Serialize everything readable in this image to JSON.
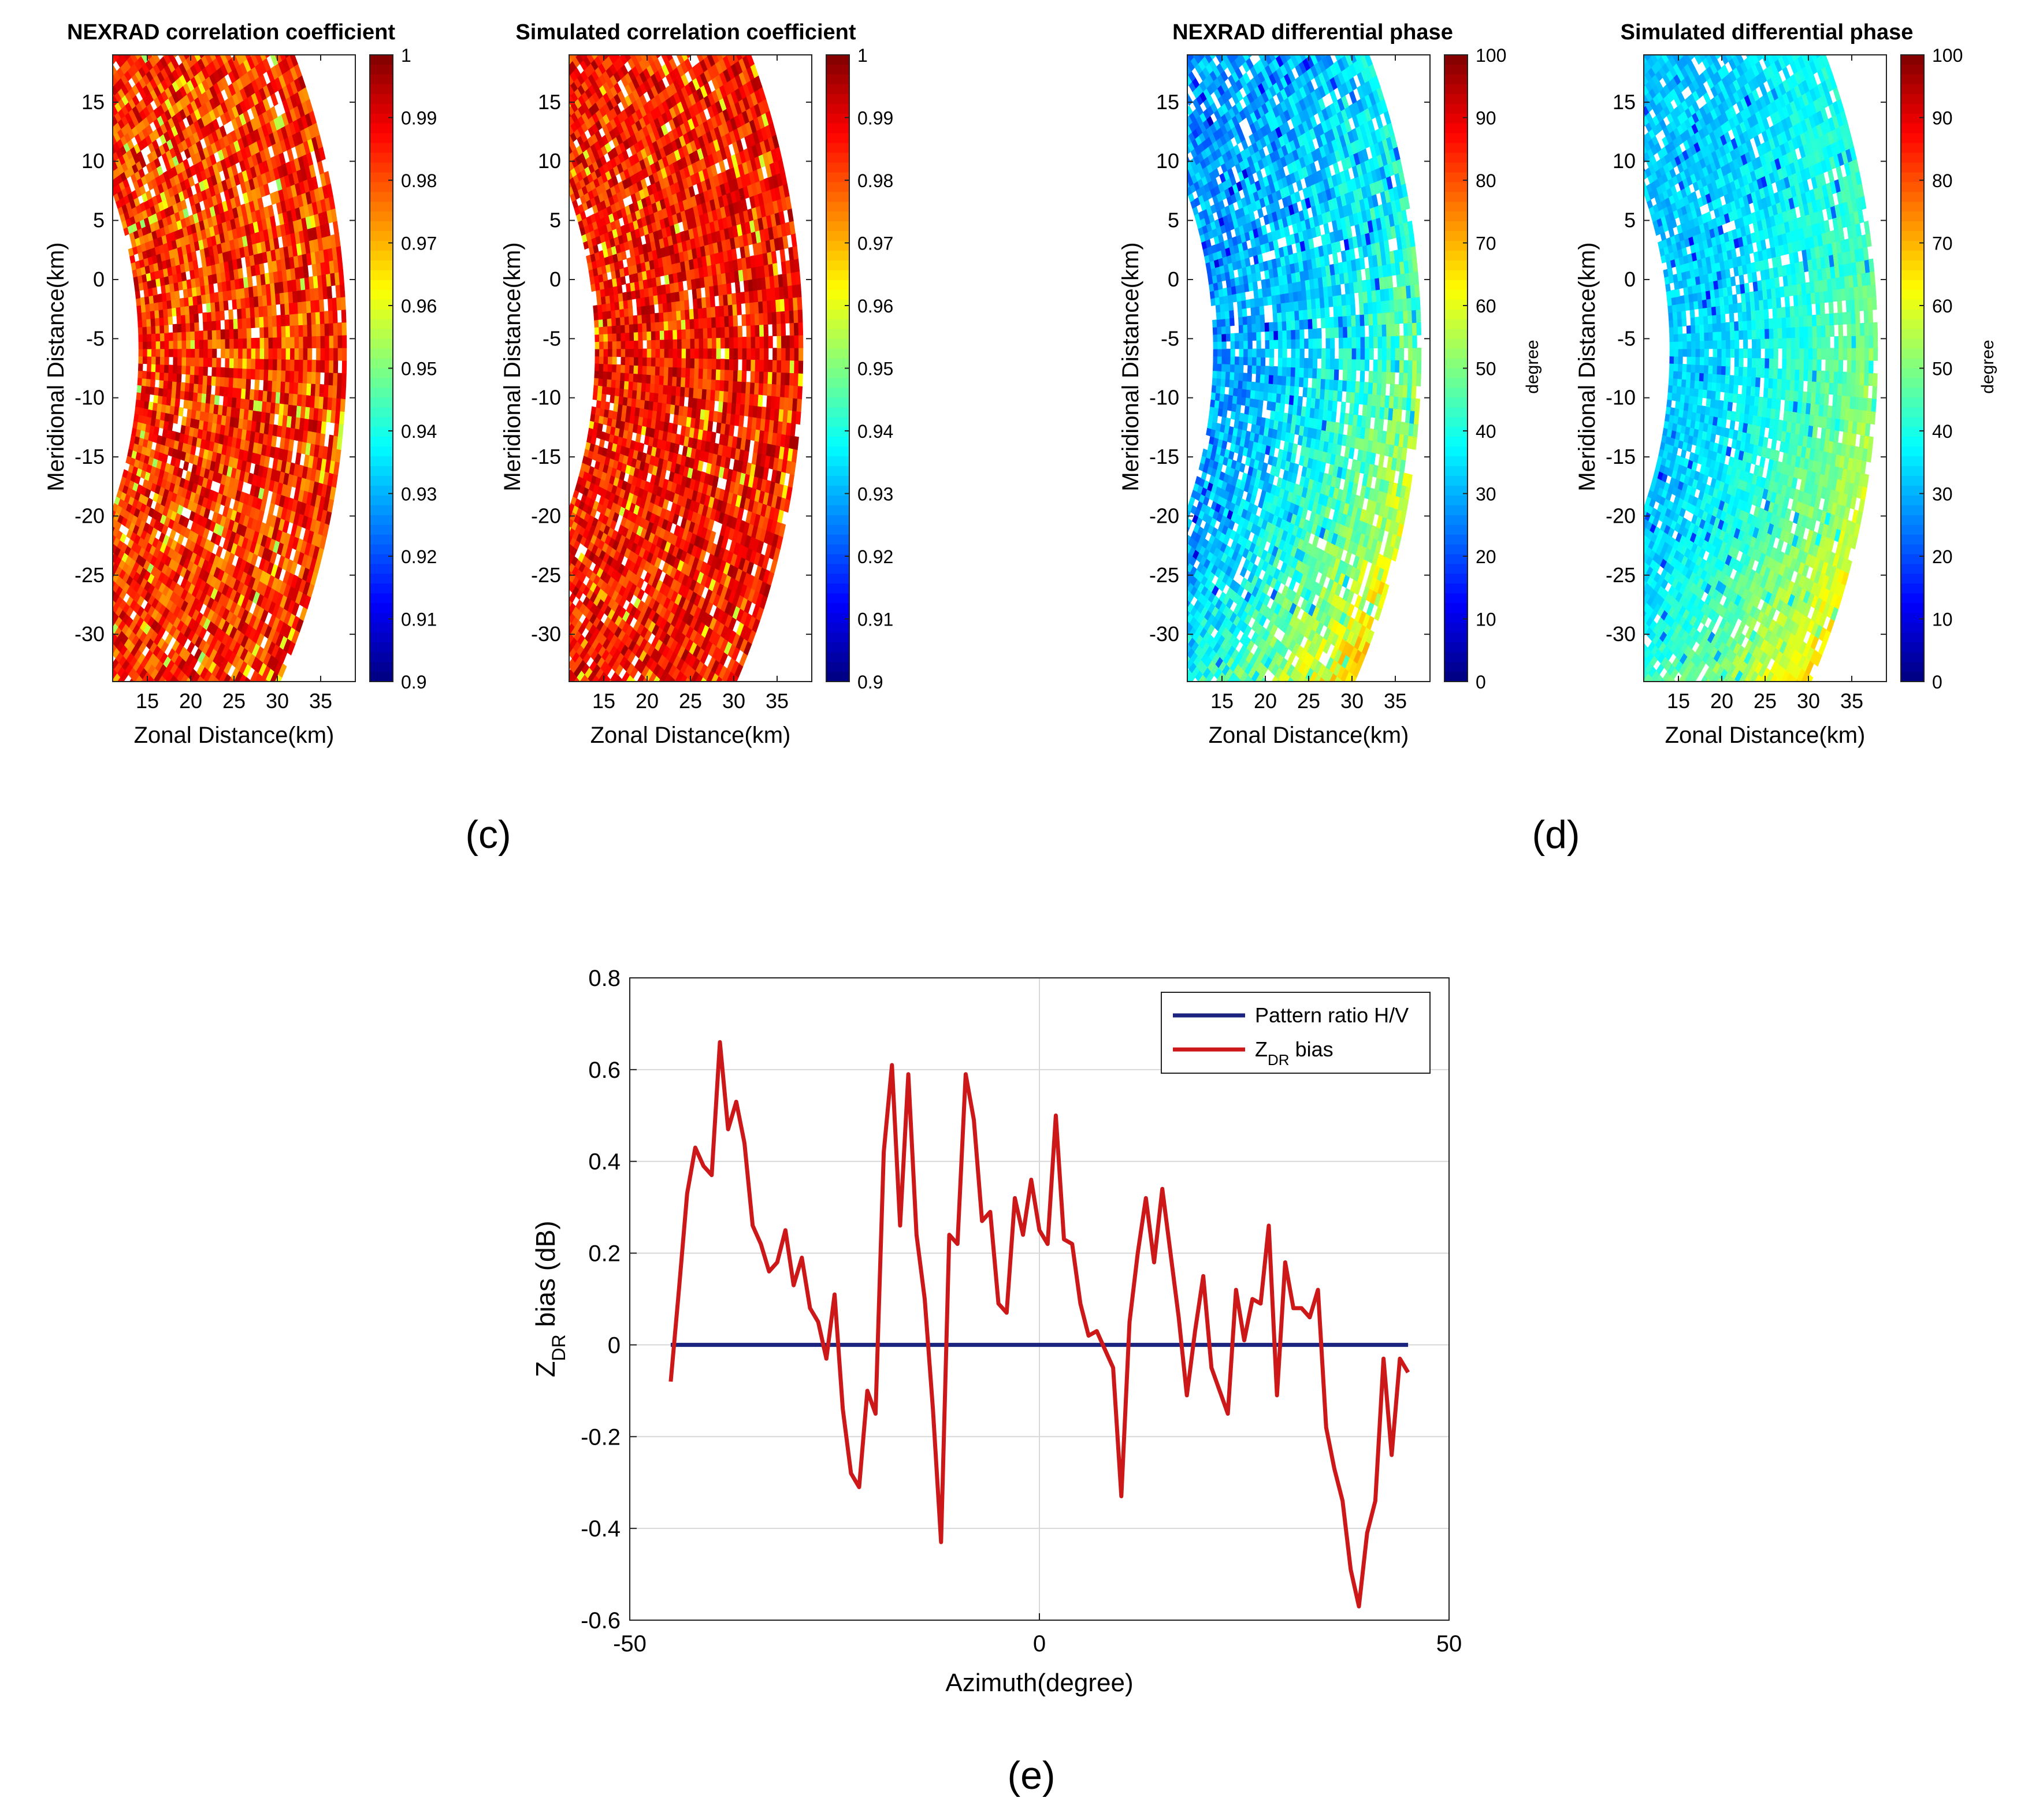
{
  "chart_data": [
    {
      "type": "heatmap",
      "title": "NEXRAD correlation coefficient",
      "xlabel": "Zonal Distance(km)",
      "ylabel": "Meridional Distance(km)",
      "xlim": [
        11,
        39
      ],
      "ylim": [
        -34,
        19
      ],
      "xticks": [
        15,
        20,
        25,
        30,
        35
      ],
      "yticks": [
        15,
        10,
        5,
        0,
        -5,
        -10,
        -15,
        -20,
        -25,
        -30
      ],
      "colorbar": {
        "min": 0.9,
        "max": 1,
        "ticks": [
          1,
          0.99,
          0.98,
          0.97,
          0.96,
          0.95,
          0.94,
          0.93,
          0.92,
          0.91,
          0.9
        ],
        "label": "",
        "colormap": "jet"
      },
      "field": {
        "kind": "rho",
        "base": 0.985,
        "spread": 0.012,
        "seed": 11,
        "gaps": 0.06
      }
    },
    {
      "type": "heatmap",
      "title": "Simulated correlation coefficient",
      "xlabel": "Zonal Distance(km)",
      "ylabel": "Meridional Distance(km)",
      "xlim": [
        11,
        39
      ],
      "ylim": [
        -34,
        19
      ],
      "xticks": [
        15,
        20,
        25,
        30,
        35
      ],
      "yticks": [
        15,
        10,
        5,
        0,
        -5,
        -10,
        -15,
        -20,
        -25,
        -30
      ],
      "colorbar": {
        "min": 0.9,
        "max": 1,
        "ticks": [
          1,
          0.99,
          0.98,
          0.97,
          0.96,
          0.95,
          0.94,
          0.93,
          0.92,
          0.91,
          0.9
        ],
        "label": "",
        "colormap": "jet"
      },
      "field": {
        "kind": "rho",
        "base": 0.988,
        "spread": 0.01,
        "seed": 23,
        "gaps": 0.05
      }
    },
    {
      "type": "heatmap",
      "title": "NEXRAD differential phase",
      "xlabel": "Zonal Distance(km)",
      "ylabel": "Meridional Distance(km)",
      "xlim": [
        11,
        39
      ],
      "ylim": [
        -34,
        19
      ],
      "xticks": [
        15,
        20,
        25,
        30,
        35
      ],
      "yticks": [
        15,
        10,
        5,
        0,
        -5,
        -10,
        -15,
        -20,
        -25,
        -30
      ],
      "colorbar": {
        "min": 0,
        "max": 100,
        "ticks": [
          100,
          90,
          80,
          70,
          60,
          50,
          40,
          30,
          20,
          10,
          0
        ],
        "label": "degree",
        "colormap": "jet"
      },
      "field": {
        "kind": "phase",
        "base": 28,
        "gain": 55,
        "spread": 8,
        "seed": 37,
        "gaps": 0.1
      }
    },
    {
      "type": "heatmap",
      "title": "Simulated differential phase",
      "xlabel": "Zonal Distance(km)",
      "ylabel": "Meridional Distance(km)",
      "xlim": [
        11,
        39
      ],
      "ylim": [
        -34,
        19
      ],
      "xticks": [
        15,
        20,
        25,
        30,
        35
      ],
      "yticks": [
        15,
        10,
        5,
        0,
        -5,
        -10,
        -15,
        -20,
        -25,
        -30
      ],
      "colorbar": {
        "min": 0,
        "max": 100,
        "ticks": [
          100,
          90,
          80,
          70,
          60,
          50,
          40,
          30,
          20,
          10,
          0
        ],
        "label": "degree",
        "colormap": "jet"
      },
      "field": {
        "kind": "phase",
        "base": 32,
        "gain": 48,
        "spread": 5,
        "seed": 53,
        "gaps": 0.08
      }
    },
    {
      "type": "line",
      "title": "",
      "xlabel": "Azimuth(degree)",
      "ylabel_main": "Z",
      "ylabel_sub": "DR",
      "ylabel_rest": " bias (dB)",
      "xlim": [
        -50,
        50
      ],
      "ylim": [
        -0.6,
        0.8
      ],
      "xticks": [
        -50,
        0,
        50
      ],
      "yticks": [
        0.8,
        0.6,
        0.4,
        0.2,
        0,
        -0.2,
        -0.4,
        -0.6
      ],
      "grid": true,
      "legend_position": "top-right",
      "series": [
        {
          "name": "Pattern ratio H/V",
          "color": "#1a237e",
          "x": [
            -45,
            45
          ],
          "y": [
            0,
            0
          ]
        },
        {
          "name": "ZDR bias",
          "legend_main": "Z",
          "legend_sub": "DR",
          "legend_rest": " bias",
          "color": "#cc1818",
          "x": [
            -45,
            -44,
            -43,
            -42,
            -41,
            -40,
            -39,
            -38,
            -37,
            -36,
            -35,
            -34,
            -33,
            -32,
            -31,
            -30,
            -29,
            -28,
            -27,
            -26,
            -25,
            -24,
            -23,
            -22,
            -21,
            -20,
            -19,
            -18,
            -17,
            -16,
            -15,
            -14,
            -13,
            -12,
            -11,
            -10,
            -9,
            -8,
            -7,
            -6,
            -5,
            -4,
            -3,
            -2,
            -1,
            0,
            1,
            2,
            3,
            4,
            5,
            6,
            7,
            8,
            9,
            10,
            11,
            12,
            13,
            14,
            15,
            16,
            17,
            18,
            19,
            20,
            21,
            22,
            23,
            24,
            25,
            26,
            27,
            28,
            29,
            30,
            31,
            32,
            33,
            34,
            35,
            36,
            37,
            38,
            39,
            40,
            41,
            42,
            43,
            44,
            45
          ],
          "y": [
            -0.08,
            0.12,
            0.33,
            0.43,
            0.39,
            0.37,
            0.66,
            0.47,
            0.53,
            0.44,
            0.26,
            0.22,
            0.16,
            0.18,
            0.25,
            0.13,
            0.19,
            0.08,
            0.05,
            -0.03,
            0.11,
            -0.14,
            -0.28,
            -0.31,
            -0.1,
            -0.15,
            0.42,
            0.61,
            0.26,
            0.59,
            0.24,
            0.1,
            -0.14,
            -0.43,
            0.24,
            0.22,
            0.59,
            0.49,
            0.27,
            0.29,
            0.09,
            0.07,
            0.32,
            0.24,
            0.36,
            0.25,
            0.22,
            0.5,
            0.23,
            0.22,
            0.09,
            0.02,
            0.03,
            -0.01,
            -0.05,
            -0.33,
            0.05,
            0.2,
            0.32,
            0.18,
            0.34,
            0.2,
            0.06,
            -0.11,
            0.03,
            0.15,
            -0.05,
            -0.1,
            -0.15,
            0.12,
            0.01,
            0.1,
            0.09,
            0.26,
            -0.11,
            0.18,
            0.08,
            0.08,
            0.06,
            0.12,
            -0.18,
            -0.27,
            -0.34,
            -0.49,
            -0.57,
            -0.41,
            -0.34,
            -0.03,
            -0.24,
            -0.03,
            -0.06
          ]
        }
      ]
    }
  ],
  "panel_labels": {
    "c": "(c)",
    "d": "(d)",
    "e": "(e)"
  }
}
